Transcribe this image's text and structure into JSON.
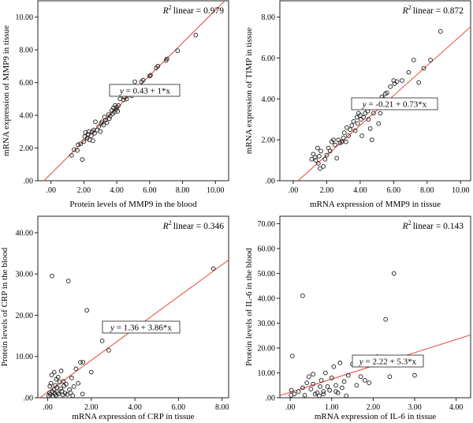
{
  "chart_data": [
    {
      "type": "scatter",
      "r2_label": "linear = 0.979",
      "fit_label": "= 0.43 + 1*x",
      "fit": {
        "intercept": 0.43,
        "slope": 1.0
      },
      "xlabel": "Protein levels of MMP9 in the blood",
      "ylabel": "mRNA expression of MMP9 in tissue",
      "xlim": [
        -0.8,
        10.8
      ],
      "ylim": [
        0,
        11
      ],
      "xticks": [
        0,
        2,
        4,
        6,
        8,
        10
      ],
      "yticks": [
        0,
        2,
        4,
        6,
        8,
        10
      ],
      "xtick_labels": [
        ".00",
        "2.00",
        "4.00",
        "6.00",
        "8.00",
        "10.00"
      ],
      "ytick_labels": [
        ".00",
        "2.00",
        "4.00",
        "6.00",
        "8.00",
        "10.00"
      ],
      "points": [
        [
          1.25,
          1.55
        ],
        [
          1.4,
          1.9
        ],
        [
          1.6,
          1.85
        ],
        [
          1.65,
          2.2
        ],
        [
          1.8,
          2.25
        ],
        [
          1.9,
          1.3
        ],
        [
          2.0,
          2.4
        ],
        [
          2.05,
          2.7
        ],
        [
          2.1,
          2.95
        ],
        [
          2.2,
          2.6
        ],
        [
          2.25,
          2.85
        ],
        [
          2.3,
          3.0
        ],
        [
          2.35,
          2.5
        ],
        [
          2.45,
          2.75
        ],
        [
          2.5,
          3.0
        ],
        [
          2.55,
          2.45
        ],
        [
          2.6,
          3.1
        ],
        [
          2.65,
          2.9
        ],
        [
          2.7,
          3.6
        ],
        [
          2.8,
          3.1
        ],
        [
          2.9,
          3.3
        ],
        [
          3.0,
          3.0
        ],
        [
          3.05,
          3.5
        ],
        [
          3.1,
          3.6
        ],
        [
          3.2,
          3.4
        ],
        [
          3.25,
          3.9
        ],
        [
          3.3,
          3.7
        ],
        [
          3.4,
          3.55
        ],
        [
          3.5,
          4.05
        ],
        [
          3.55,
          3.8
        ],
        [
          3.6,
          3.95
        ],
        [
          3.7,
          4.3
        ],
        [
          3.75,
          4.1
        ],
        [
          3.8,
          4.45
        ],
        [
          3.85,
          4.2
        ],
        [
          3.9,
          4.6
        ],
        [
          3.95,
          4.35
        ],
        [
          4.0,
          4.5
        ],
        [
          4.05,
          4.25
        ],
        [
          4.1,
          4.6
        ],
        [
          4.2,
          5.0
        ],
        [
          4.4,
          4.95
        ],
        [
          4.45,
          5.1
        ],
        [
          4.6,
          5.0
        ],
        [
          4.9,
          5.2
        ],
        [
          5.1,
          6.05
        ],
        [
          5.5,
          6.05
        ],
        [
          5.6,
          6.15
        ],
        [
          6.0,
          6.4
        ],
        [
          6.05,
          6.45
        ],
        [
          6.4,
          6.9
        ],
        [
          6.5,
          7.0
        ],
        [
          7.0,
          7.35
        ],
        [
          7.05,
          7.45
        ],
        [
          7.7,
          7.95
        ],
        [
          8.8,
          8.9
        ]
      ]
    },
    {
      "type": "scatter",
      "r2_label": "linear = 0.872",
      "fit_label": "= -0.21 + 0.73*x",
      "fit": {
        "intercept": -0.21,
        "slope": 0.73
      },
      "xlabel": "mRNA expression of MMP9 in tissue",
      "ylabel": "mRNA expression of TIMP in tissue",
      "xlim": [
        -0.8,
        10.6
      ],
      "ylim": [
        0,
        8.8
      ],
      "xticks": [
        0,
        2,
        4,
        6,
        8,
        10
      ],
      "yticks": [
        0,
        2,
        4,
        6,
        8
      ],
      "xtick_labels": [
        ".00",
        "2.00",
        "4.00",
        "6.00",
        "8.00",
        "10.00"
      ],
      "ytick_labels": [
        ".00",
        "2.00",
        "4.00",
        "6.00",
        "8.00"
      ],
      "points": [
        [
          1.1,
          1.05
        ],
        [
          1.2,
          1.3
        ],
        [
          1.3,
          1.15
        ],
        [
          1.35,
          1.0
        ],
        [
          1.45,
          1.6
        ],
        [
          1.5,
          0.85
        ],
        [
          1.55,
          1.2
        ],
        [
          1.6,
          0.6
        ],
        [
          1.65,
          1.45
        ],
        [
          1.8,
          0.7
        ],
        [
          1.9,
          1.05
        ],
        [
          2.0,
          1.25
        ],
        [
          2.1,
          1.6
        ],
        [
          2.2,
          1.45
        ],
        [
          2.3,
          1.9
        ],
        [
          2.4,
          2.0
        ],
        [
          2.5,
          1.75
        ],
        [
          2.6,
          1.1
        ],
        [
          2.7,
          2.0
        ],
        [
          2.8,
          1.85
        ],
        [
          2.9,
          1.9
        ],
        [
          3.0,
          2.1
        ],
        [
          3.05,
          2.35
        ],
        [
          3.15,
          1.9
        ],
        [
          3.2,
          2.6
        ],
        [
          3.3,
          2.2
        ],
        [
          3.4,
          2.5
        ],
        [
          3.5,
          2.7
        ],
        [
          3.6,
          2.9
        ],
        [
          3.7,
          2.45
        ],
        [
          3.8,
          3.1
        ],
        [
          3.85,
          2.8
        ],
        [
          3.9,
          3.3
        ],
        [
          4.0,
          3.2
        ],
        [
          4.05,
          3.0
        ],
        [
          4.1,
          2.2
        ],
        [
          4.2,
          3.1
        ],
        [
          4.3,
          3.3
        ],
        [
          4.35,
          3.55
        ],
        [
          4.45,
          3.4
        ],
        [
          4.5,
          3.0
        ],
        [
          4.6,
          2.55
        ],
        [
          4.7,
          2.0
        ],
        [
          4.8,
          3.3
        ],
        [
          4.9,
          3.65
        ],
        [
          5.0,
          3.6
        ],
        [
          5.1,
          2.8
        ],
        [
          5.2,
          3.3
        ],
        [
          5.3,
          4.1
        ],
        [
          5.4,
          4.0
        ],
        [
          5.5,
          4.25
        ],
        [
          5.6,
          4.3
        ],
        [
          5.8,
          4.6
        ],
        [
          6.0,
          4.9
        ],
        [
          6.05,
          4.75
        ],
        [
          6.2,
          4.85
        ],
        [
          6.5,
          4.9
        ],
        [
          6.9,
          5.3
        ],
        [
          7.2,
          5.9
        ],
        [
          7.5,
          4.8
        ],
        [
          7.8,
          5.5
        ],
        [
          8.2,
          5.9
        ],
        [
          8.8,
          7.3
        ]
      ]
    },
    {
      "type": "scatter",
      "r2_label": "linear = 0.346",
      "fit_label": "= 1.36 + 3.86*x",
      "fit": {
        "intercept": 1.36,
        "slope": 3.86
      },
      "xlabel": "mRNA expression of CRP in tissue",
      "ylabel": "Protein levels of CRP in the blood",
      "xlim": [
        -0.45,
        8.3
      ],
      "ylim": [
        0,
        44
      ],
      "xticks": [
        0,
        2,
        4,
        6,
        8
      ],
      "yticks": [
        0,
        10,
        20,
        30,
        40
      ],
      "xtick_labels": [
        ".00",
        "2.00",
        "4.00",
        "6.00",
        "8.00"
      ],
      "ytick_labels": [
        ".00",
        "10.00",
        "20.00",
        "30.00",
        "40.00"
      ],
      "points": [
        [
          0.05,
          0.5
        ],
        [
          0.08,
          1.2
        ],
        [
          0.1,
          2.8
        ],
        [
          0.12,
          0.8
        ],
        [
          0.15,
          3.5
        ],
        [
          0.18,
          5.5
        ],
        [
          0.2,
          29.5
        ],
        [
          0.22,
          1.5
        ],
        [
          0.25,
          0.4
        ],
        [
          0.28,
          2.0
        ],
        [
          0.3,
          6.2
        ],
        [
          0.32,
          1.0
        ],
        [
          0.35,
          3.0
        ],
        [
          0.38,
          0.6
        ],
        [
          0.4,
          4.5
        ],
        [
          0.42,
          2.5
        ],
        [
          0.45,
          1.3
        ],
        [
          0.48,
          5.0
        ],
        [
          0.5,
          0.9
        ],
        [
          0.55,
          3.8
        ],
        [
          0.6,
          2.2
        ],
        [
          0.62,
          6.5
        ],
        [
          0.65,
          1.6
        ],
        [
          0.7,
          0.7
        ],
        [
          0.72,
          4.0
        ],
        [
          0.75,
          2.9
        ],
        [
          0.8,
          1.1
        ],
        [
          0.85,
          3.3
        ],
        [
          0.9,
          0.8
        ],
        [
          0.95,
          28.3
        ],
        [
          1.0,
          2.0
        ],
        [
          1.05,
          1.2
        ],
        [
          1.1,
          4.8
        ],
        [
          1.15,
          0.5
        ],
        [
          1.2,
          2.7
        ],
        [
          1.3,
          7.0
        ],
        [
          1.4,
          3.5
        ],
        [
          1.5,
          8.6
        ],
        [
          1.6,
          0.9
        ],
        [
          1.62,
          8.6
        ],
        [
          1.8,
          21.2
        ],
        [
          2.0,
          6.2
        ],
        [
          2.5,
          13.8
        ],
        [
          2.8,
          11.5
        ],
        [
          7.6,
          31.3
        ]
      ]
    },
    {
      "type": "scatter",
      "r2_label": "linear = 0.143",
      "fit_label": "= 2.22 + 5.3*x",
      "fit": {
        "intercept": 2.22,
        "slope": 5.3
      },
      "xlabel": "mRNA expression of IL-6 in tissue",
      "ylabel": "Protein levels of IL-6 in the blood",
      "xlim": [
        -0.25,
        4.35
      ],
      "ylim": [
        0,
        73
      ],
      "xticks": [
        0,
        1,
        2,
        3,
        4
      ],
      "yticks": [
        0,
        10,
        20,
        30,
        40,
        50,
        60,
        70
      ],
      "xtick_labels": [
        ".00",
        "1.00",
        "2.00",
        "3.00",
        "4.00"
      ],
      "ytick_labels": [
        ".00",
        "10.00",
        "20.00",
        "30.00",
        "40.00",
        "50.00",
        "60.00",
        "70.00"
      ],
      "points": [
        [
          0.02,
          1.0
        ],
        [
          0.03,
          3.0
        ],
        [
          0.05,
          16.8
        ],
        [
          0.1,
          1.5
        ],
        [
          0.2,
          2.5
        ],
        [
          0.3,
          4.0
        ],
        [
          0.35,
          1.0
        ],
        [
          0.4,
          6.0
        ],
        [
          0.45,
          8.5
        ],
        [
          0.5,
          3.5
        ],
        [
          0.55,
          5.5
        ],
        [
          0.6,
          1.5
        ],
        [
          0.65,
          2.0
        ],
        [
          0.7,
          0.8
        ],
        [
          0.72,
          4.5
        ],
        [
          0.75,
          7.0
        ],
        [
          0.8,
          2.5
        ],
        [
          0.85,
          10.0
        ],
        [
          0.9,
          4.5
        ],
        [
          0.95,
          3.0
        ],
        [
          1.0,
          8.0
        ],
        [
          1.05,
          12.5
        ],
        [
          1.1,
          5.0
        ],
        [
          1.15,
          2.0
        ],
        [
          1.2,
          14.0
        ],
        [
          1.25,
          4.0
        ],
        [
          1.3,
          6.5
        ],
        [
          1.35,
          0.8
        ],
        [
          1.4,
          9.0
        ],
        [
          1.5,
          13.5
        ],
        [
          1.6,
          5.0
        ],
        [
          1.7,
          8.5
        ],
        [
          1.8,
          7.0
        ],
        [
          1.9,
          6.0
        ],
        [
          2.1,
          16.5
        ],
        [
          2.3,
          31.5
        ],
        [
          2.4,
          8.5
        ],
        [
          2.5,
          50.0
        ],
        [
          3.0,
          9.0
        ],
        [
          0.3,
          41.0
        ],
        [
          0.55,
          9.5
        ],
        [
          0.8,
          1.5
        ],
        [
          1.1,
          2.5
        ]
      ]
    }
  ]
}
